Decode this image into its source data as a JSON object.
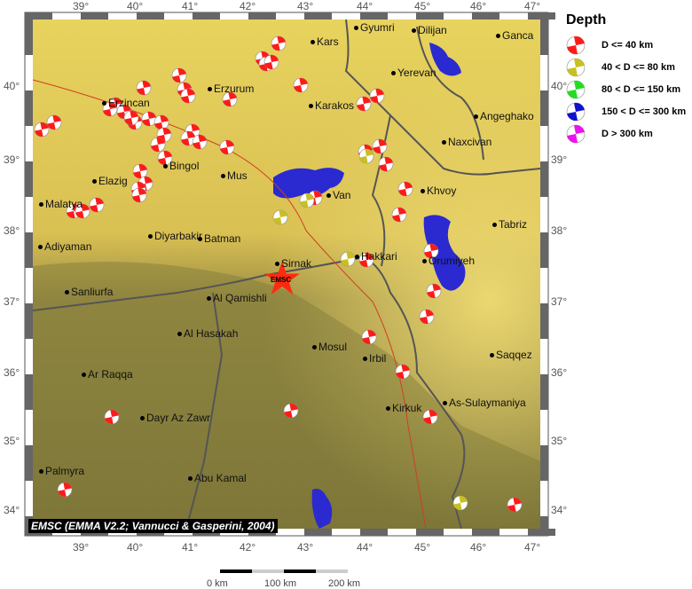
{
  "legend": {
    "title": "Depth",
    "items": [
      {
        "label": "D <= 40 km",
        "color": "#ff1a1a"
      },
      {
        "label": "40 < D <= 80 km",
        "color": "#c8c020"
      },
      {
        "label": "80 < D <= 150 km",
        "color": "#22dd22"
      },
      {
        "label": "150 < D <= 300 km",
        "color": "#1010d0"
      },
      {
        "label": "D > 300 km",
        "color": "#ee10ee"
      }
    ]
  },
  "axes": {
    "lon_ticks": [
      "39°",
      "40°",
      "41°",
      "42°",
      "43°",
      "44°",
      "45°",
      "46°",
      "47°"
    ],
    "lat_ticks": [
      "40°",
      "39°",
      "38°",
      "37°",
      "36°",
      "35°",
      "34°"
    ]
  },
  "cities": [
    "Gyumri",
    "Dilijan",
    "Ganca",
    "Kars",
    "Yerevan",
    "Erzurum",
    "Karakos",
    "Angeghako",
    "Naxcivan",
    "Erzincan",
    "Bingol",
    "Elazig",
    "Mus",
    "Van",
    "Khvoy",
    "Malatya",
    "Tabriz",
    "Diyarbakir",
    "Batman",
    "Adiyaman",
    "Sirnak",
    "Hakkari",
    "Orumiyeh",
    "Sanliurfa",
    "Al Qamishli",
    "Al Hasakah",
    "Mosul",
    "Irbil",
    "Ar Raqqa",
    "Saqqez",
    "Kirkuk",
    "As-Sulaymaniya",
    "Dayr Az Zawr",
    "Palmyra",
    "Abu Kamal"
  ],
  "epicenter_label": "EMSC",
  "credit": "EMSC (EMMA V2.2; Vannucci & Gasperini, 2004)",
  "scale": {
    "labels": [
      "0 km",
      "100 km",
      "200 km"
    ]
  },
  "colors": {
    "water": "#2a2ad0",
    "highland": "#e6cf5a",
    "lowland": "#857a3c",
    "epicenter": "#ff2a10"
  }
}
